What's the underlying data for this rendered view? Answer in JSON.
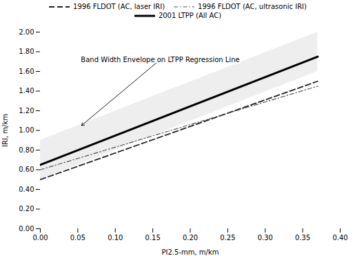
{
  "chart_data": {
    "type": "line",
    "xlabel": "PI2.5-mm, m/km",
    "ylabel": "IRI, m/km",
    "xlim": [
      0.0,
      0.4
    ],
    "ylim": [
      0.0,
      2.0
    ],
    "xticks": [
      {
        "value": 0.0,
        "label": "0.00"
      },
      {
        "value": 0.05,
        "label": "0.05"
      },
      {
        "value": 0.1,
        "label": "0.10"
      },
      {
        "value": 0.15,
        "label": "0.15"
      },
      {
        "value": 0.2,
        "label": "0.20"
      },
      {
        "value": 0.25,
        "label": "0.25"
      },
      {
        "value": 0.3,
        "label": "0.30"
      },
      {
        "value": 0.35,
        "label": "0.35"
      },
      {
        "value": 0.4,
        "label": "0.40"
      }
    ],
    "yticks": [
      {
        "value": 0.0,
        "label": "0.00"
      },
      {
        "value": 0.2,
        "label": "0.20"
      },
      {
        "value": 0.4,
        "label": "0.40"
      },
      {
        "value": 0.6,
        "label": "0.60"
      },
      {
        "value": 0.8,
        "label": "0.80"
      },
      {
        "value": 1.0,
        "label": "1.00"
      },
      {
        "value": 1.2,
        "label": "1.20"
      },
      {
        "value": 1.4,
        "label": "1.40"
      },
      {
        "value": 1.6,
        "label": "1.60"
      },
      {
        "value": 1.8,
        "label": "1.80"
      },
      {
        "value": 2.0,
        "label": "2.00"
      }
    ],
    "x": [
      0.0,
      0.37
    ],
    "series": [
      {
        "name": "1996 FLDOT (AC, laser IRI)",
        "color": "#222222",
        "line_style": "dashed",
        "values": [
          0.5,
          1.5
        ]
      },
      {
        "name": "1996 FLDOT (AC, ultrasonic IRI)",
        "color": "#555555",
        "line_style": "dashdot",
        "values": [
          0.6,
          1.45
        ]
      },
      {
        "name": "2001 LTPP (All AC)",
        "color": "#000000",
        "line_style": "solid",
        "values": [
          0.65,
          1.75
        ]
      }
    ],
    "band": {
      "lower": [
        0.5,
        1.6
      ],
      "upper": [
        0.9,
        2.0
      ],
      "color": "#eeeeee"
    },
    "annotations": [
      {
        "text": "Band Width Envelope on LTPP Regression Line",
        "x": 0.055,
        "y": 1.05,
        "text_x": 0.16,
        "text_y": 1.72
      }
    ],
    "legend": "top",
    "grid": false
  }
}
